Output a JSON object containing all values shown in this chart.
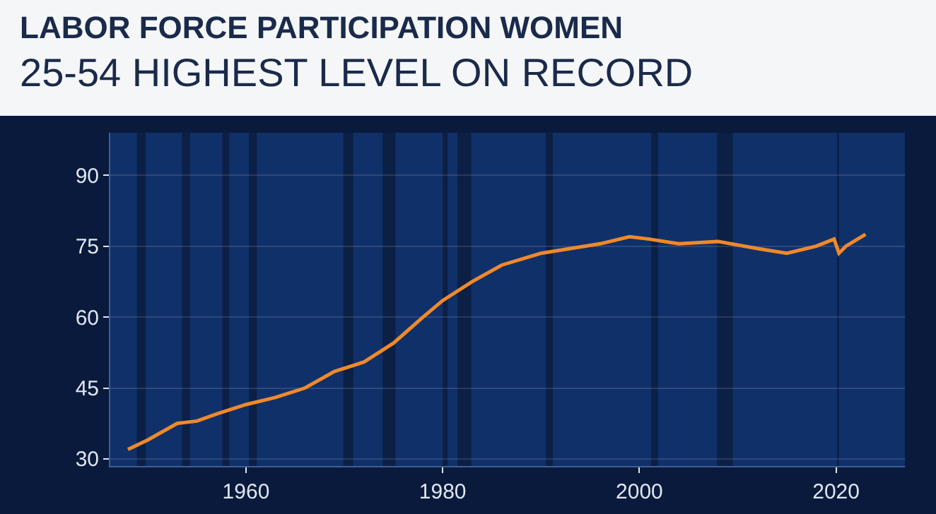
{
  "chart_data": {
    "type": "line",
    "title": "LABOR FORCE PARTICIPATION WOMEN",
    "subtitle": "25-54 HIGHEST LEVEL ON RECORD",
    "x": [
      1948,
      1950,
      1953,
      1955,
      1957,
      1960,
      1963,
      1966,
      1969,
      1972,
      1975,
      1978,
      1980,
      1983,
      1986,
      1990,
      1993,
      1996,
      1999,
      2001,
      2004,
      2008,
      2012,
      2015,
      2018,
      2019.8,
      2020.3,
      2021,
      2023
    ],
    "series": [
      {
        "color": "#f0892a",
        "values": [
          32,
          34,
          37.5,
          38,
          39.5,
          41.5,
          43,
          45,
          48.5,
          50.5,
          54.5,
          60,
          63.5,
          67.5,
          71,
          73.5,
          74.5,
          75.5,
          77,
          76.5,
          75.5,
          76,
          74.5,
          73.5,
          75,
          76.5,
          73.5,
          75,
          77.5
        ]
      }
    ],
    "xlim": [
      1946.2,
      2027
    ],
    "xticks": [
      1960,
      1980,
      2000,
      2020
    ],
    "ylim": [
      28.5,
      99
    ],
    "yticks": [
      30,
      45,
      60,
      75,
      90
    ],
    "grid": "y",
    "line_style": "solid",
    "bands": [
      {
        "axis": "x",
        "from": 1948.9,
        "to": 1949.8,
        "color": "#0b1a3a"
      },
      {
        "axis": "x",
        "from": 1953.5,
        "to": 1954.3,
        "color": "#0b1a3a"
      },
      {
        "axis": "x",
        "from": 1957.6,
        "to": 1958.3,
        "color": "#0b1a3a"
      },
      {
        "axis": "x",
        "from": 1960.3,
        "to": 1961.1,
        "color": "#0b1a3a"
      },
      {
        "axis": "x",
        "from": 1969.9,
        "to": 1970.9,
        "color": "#0b1a3a"
      },
      {
        "axis": "x",
        "from": 1973.9,
        "to": 1975.2,
        "color": "#0b1a3a"
      },
      {
        "axis": "x",
        "from": 1980,
        "to": 1980.5,
        "color": "#0b1a3a"
      },
      {
        "axis": "x",
        "from": 1981.5,
        "to": 1982.9,
        "color": "#0b1a3a"
      },
      {
        "axis": "x",
        "from": 1990.5,
        "to": 1991.2,
        "color": "#0b1a3a"
      },
      {
        "axis": "x",
        "from": 2001.2,
        "to": 2001.9,
        "color": "#0b1a3a"
      },
      {
        "axis": "x",
        "from": 2007.9,
        "to": 2009.5,
        "color": "#0b1a3a"
      },
      {
        "axis": "x",
        "from": 2020.1,
        "to": 2020.3,
        "color": "#0b1a3a"
      }
    ]
  }
}
